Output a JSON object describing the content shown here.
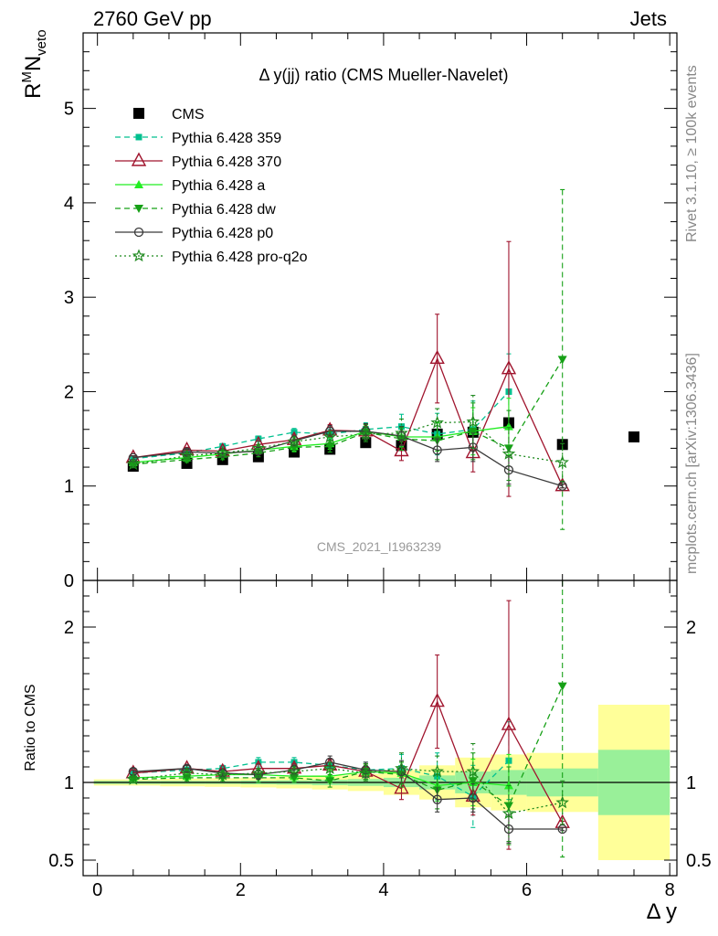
{
  "header": {
    "left": "2760 GeV pp",
    "right": "Jets"
  },
  "side_labels": {
    "top": "Rivet 3.1.10, ≥ 100k events",
    "bottom": "mcplots.cern.ch [arXiv:1306.3436]"
  },
  "watermark": "CMS_2021_I1963239",
  "chart_data": [
    {
      "type": "line",
      "title": "Δ y(jj) ratio (CMS Mueller-Navelet)",
      "ylabel_main": "R",
      "ylabel_sup": "M",
      "ylabel_mid": "N",
      "ylabel_sub": "veto",
      "xlim": [
        -0.2,
        8.1
      ],
      "ylim": [
        0,
        5.8
      ],
      "yticks": [
        0,
        1,
        2,
        3,
        4,
        5
      ],
      "ytick_labels": [
        "0",
        "1",
        "2",
        "3",
        "4",
        "5"
      ],
      "legend": "top-left",
      "x": [
        0.5,
        1.25,
        1.75,
        2.25,
        2.75,
        3.25,
        3.75,
        4.25,
        4.75,
        5.25,
        5.75,
        6.5,
        7.5
      ],
      "series": [
        {
          "name": "CMS",
          "color": "#000000",
          "marker": "square-filled",
          "style": "none",
          "values": [
            1.21,
            1.24,
            1.28,
            1.31,
            1.36,
            1.39,
            1.46,
            1.43,
            1.55,
            1.57,
            1.67,
            1.44,
            1.52
          ]
        },
        {
          "name": "Pythia 6.428 359",
          "color": "#00c08f",
          "marker": "square-small",
          "style": "dashed",
          "values": [
            1.29,
            1.35,
            1.42,
            1.5,
            1.57,
            1.55,
            1.6,
            1.63,
            1.55,
            1.6,
            2.0,
            null,
            null
          ],
          "errors": [
            0.02,
            0.03,
            0.03,
            0.03,
            0.04,
            0.05,
            0.07,
            0.13,
            0.22,
            0.3,
            0.4,
            null,
            null
          ]
        },
        {
          "name": "Pythia 6.428 370",
          "color": "#a0142d",
          "marker": "triangle-open",
          "style": "solid",
          "values": [
            1.3,
            1.38,
            1.37,
            1.44,
            1.49,
            1.59,
            1.58,
            1.37,
            2.35,
            1.35,
            2.24,
            1.0,
            null
          ],
          "errors": [
            0.02,
            0.03,
            0.03,
            0.04,
            0.05,
            0.06,
            0.08,
            0.1,
            0.47,
            0.2,
            1.35,
            0.02,
            null
          ]
        },
        {
          "name": "Pythia 6.428 a",
          "color": "#22ee22",
          "marker": "triangle-filled",
          "style": "solid",
          "values": [
            1.25,
            1.3,
            1.34,
            1.38,
            1.42,
            1.45,
            1.58,
            1.52,
            1.52,
            1.58,
            1.63,
            null,
            null
          ],
          "errors": [
            0.02,
            0.03,
            0.03,
            0.04,
            0.05,
            0.06,
            0.07,
            0.1,
            0.15,
            0.25,
            0.3,
            null,
            null
          ]
        },
        {
          "name": "Pythia 6.428 dw",
          "color": "#16a016",
          "marker": "triangle-down-filled",
          "style": "dashed",
          "values": [
            1.23,
            1.28,
            1.31,
            1.35,
            1.41,
            1.42,
            1.57,
            1.5,
            1.48,
            1.58,
            1.4,
            2.34,
            null
          ],
          "errors": [
            0.02,
            0.03,
            0.03,
            0.04,
            0.05,
            0.06,
            0.08,
            0.12,
            0.2,
            0.3,
            0.4,
            1.8,
            null
          ]
        },
        {
          "name": "Pythia 6.428 p0",
          "color": "#3a3a3a",
          "marker": "circle-open",
          "style": "solid",
          "values": [
            1.3,
            1.36,
            1.35,
            1.37,
            1.48,
            1.58,
            1.58,
            1.53,
            1.38,
            1.41,
            1.17,
            1.0,
            null
          ],
          "errors": [
            0.02,
            0.03,
            0.03,
            0.04,
            0.05,
            0.06,
            0.08,
            0.1,
            0.12,
            0.15,
            0.15,
            0.02,
            null
          ]
        },
        {
          "name": "Pythia 6.428 pro-q2o",
          "color": "#1f8a1f",
          "marker": "star-open",
          "style": "dotted",
          "values": [
            1.23,
            1.32,
            1.35,
            1.4,
            1.47,
            1.52,
            1.55,
            1.56,
            1.67,
            1.68,
            1.34,
            1.25,
            null
          ],
          "errors": [
            0.02,
            0.03,
            0.03,
            0.04,
            0.05,
            0.06,
            0.08,
            0.15,
            0.15,
            0.28,
            0.28,
            0.2,
            null
          ]
        }
      ]
    },
    {
      "type": "line",
      "ylabel": "Ratio to CMS",
      "xlabel": "Δ y",
      "xlim": [
        -0.2,
        8.1
      ],
      "ylim": [
        0.4,
        2.3
      ],
      "yticks": [
        0.5,
        1,
        2
      ],
      "ytick_labels": [
        "0.5",
        "1",
        "2"
      ],
      "xticks": [
        0,
        2,
        4,
        6,
        8
      ],
      "xtick_labels": [
        "0",
        "2",
        "4",
        "6",
        "8"
      ],
      "bands": [
        {
          "x0": -0.05,
          "x1": 0.875,
          "stat": 0.01,
          "total": 0.02
        },
        {
          "x0": 0.875,
          "x1": 1.5,
          "stat": 0.01,
          "total": 0.025
        },
        {
          "x0": 1.5,
          "x1": 2.0,
          "stat": 0.01,
          "total": 0.028
        },
        {
          "x0": 2.0,
          "x1": 2.5,
          "stat": 0.012,
          "total": 0.032
        },
        {
          "x0": 2.5,
          "x1": 3.0,
          "stat": 0.014,
          "total": 0.038
        },
        {
          "x0": 3.0,
          "x1": 3.5,
          "stat": 0.018,
          "total": 0.045
        },
        {
          "x0": 3.5,
          "x1": 4.0,
          "stat": 0.022,
          "total": 0.055
        },
        {
          "x0": 4.0,
          "x1": 4.5,
          "stat": 0.03,
          "total": 0.08
        },
        {
          "x0": 4.5,
          "x1": 5.0,
          "stat": 0.045,
          "total": 0.11
        },
        {
          "x0": 5.0,
          "x1": 5.5,
          "stat": 0.07,
          "total": 0.16
        },
        {
          "x0": 5.5,
          "x1": 6.0,
          "stat": 0.08,
          "total": 0.18
        },
        {
          "x0": 6.0,
          "x1": 7.0,
          "stat": 0.09,
          "total": 0.19
        },
        {
          "x0": 7.0,
          "x1": 8.0,
          "stat": 0.21,
          "total": 0.5
        }
      ],
      "x": [
        0.5,
        1.25,
        1.75,
        2.25,
        2.75,
        3.25,
        3.75,
        4.25,
        4.75,
        5.25,
        5.75,
        6.5
      ],
      "series": [
        {
          "name": "Pythia 6.428 359",
          "color": "#00c08f",
          "marker": "square-small",
          "style": "dashed",
          "values": [
            1.06,
            1.08,
            1.09,
            1.13,
            1.13,
            1.11,
            1.08,
            1.09,
            1.04,
            0.91,
            1.14,
            null
          ],
          "errors": [
            0.02,
            0.02,
            0.02,
            0.03,
            0.03,
            0.04,
            0.05,
            0.09,
            0.15,
            0.2,
            0.25,
            null
          ]
        },
        {
          "name": "Pythia 6.428 370",
          "color": "#a0142d",
          "marker": "triangle-open",
          "style": "solid",
          "values": [
            1.06,
            1.09,
            1.07,
            1.09,
            1.09,
            1.11,
            1.07,
            0.96,
            1.52,
            0.91,
            1.37,
            0.74
          ],
          "errors": [
            0.02,
            0.02,
            0.02,
            0.03,
            0.03,
            0.04,
            0.05,
            0.07,
            0.3,
            0.12,
            0.8,
            0.01
          ]
        },
        {
          "name": "Pythia 6.428 a",
          "color": "#22ee22",
          "marker": "triangle-filled",
          "style": "solid",
          "values": [
            1.03,
            1.04,
            1.05,
            1.05,
            1.04,
            1.04,
            1.07,
            1.06,
            0.98,
            1.0,
            0.98,
            null
          ],
          "errors": [
            0.02,
            0.02,
            0.02,
            0.03,
            0.03,
            0.04,
            0.05,
            0.07,
            0.1,
            0.15,
            0.2,
            null
          ]
        },
        {
          "name": "Pythia 6.428 dw",
          "color": "#16a016",
          "marker": "triangle-down-filled",
          "style": "dashed",
          "values": [
            1.02,
            1.03,
            1.03,
            1.03,
            1.03,
            1.01,
            1.07,
            1.05,
            0.95,
            1.01,
            0.85,
            1.62
          ],
          "errors": [
            0.02,
            0.02,
            0.02,
            0.03,
            0.03,
            0.04,
            0.05,
            0.08,
            0.12,
            0.18,
            0.25,
            1.1
          ]
        },
        {
          "name": "Pythia 6.428 p0",
          "color": "#3a3a3a",
          "marker": "circle-open",
          "style": "solid",
          "values": [
            1.07,
            1.09,
            1.06,
            1.05,
            1.08,
            1.13,
            1.08,
            1.07,
            0.89,
            0.9,
            0.7,
            0.7
          ],
          "errors": [
            0.02,
            0.02,
            0.02,
            0.03,
            0.03,
            0.04,
            0.05,
            0.07,
            0.08,
            0.09,
            0.09,
            0.01
          ]
        },
        {
          "name": "Pythia 6.428 pro-q2o",
          "color": "#1f8a1f",
          "marker": "star-open",
          "style": "dotted",
          "values": [
            1.02,
            1.06,
            1.05,
            1.06,
            1.07,
            1.09,
            1.06,
            1.09,
            1.07,
            1.07,
            0.8,
            0.87
          ],
          "errors": [
            0.02,
            0.02,
            0.02,
            0.03,
            0.03,
            0.04,
            0.05,
            0.1,
            0.1,
            0.18,
            0.18,
            0.14
          ]
        }
      ]
    }
  ]
}
